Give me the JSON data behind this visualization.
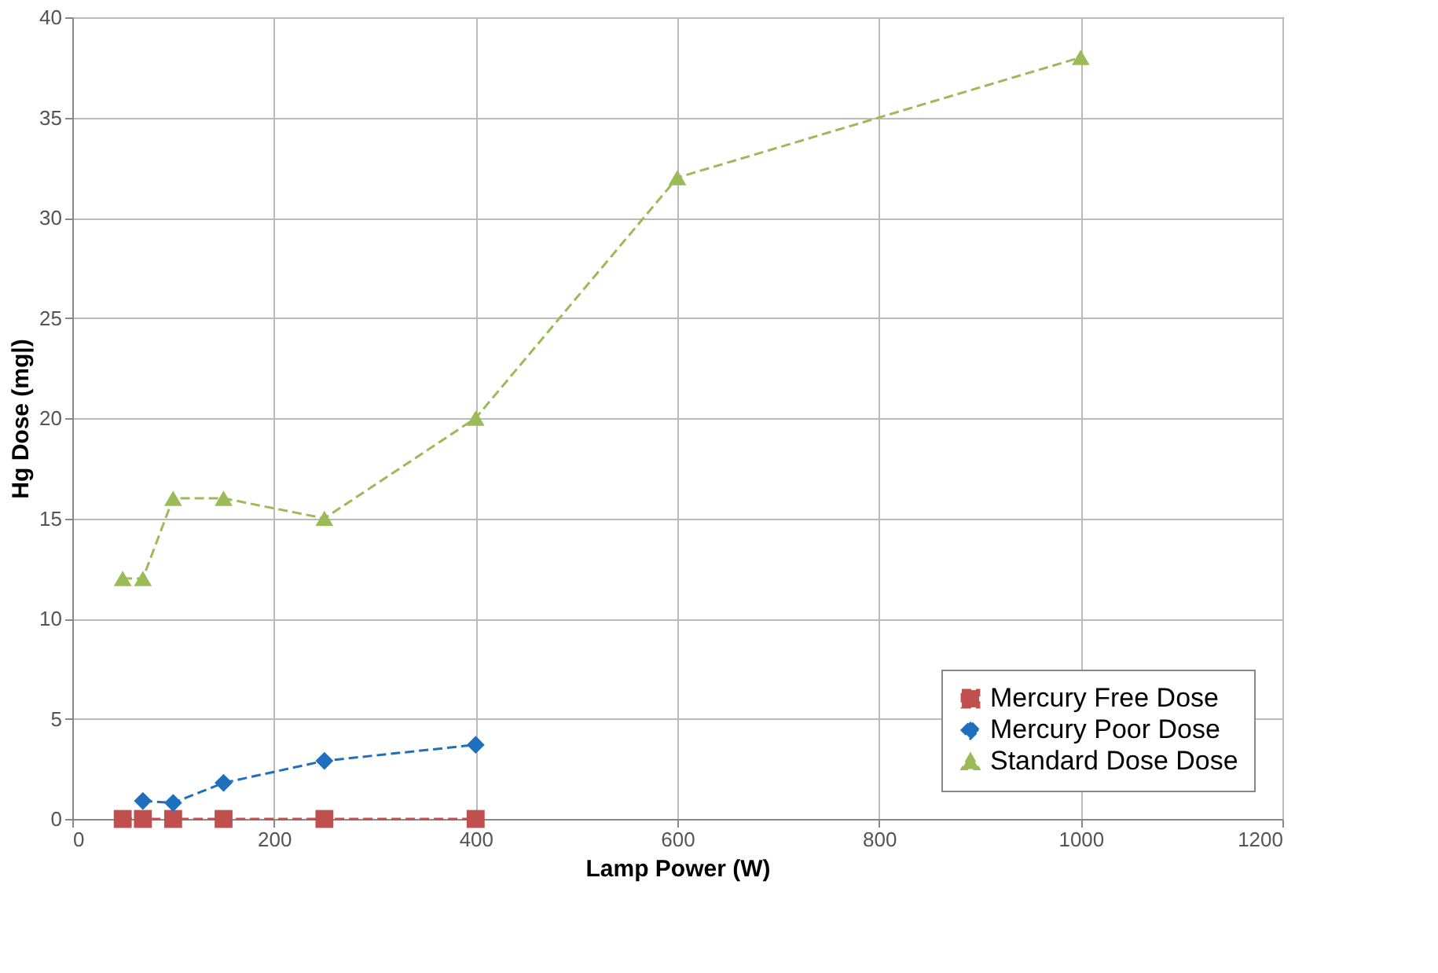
{
  "chart_data": {
    "type": "line",
    "xlabel": "Lamp Power (W)",
    "ylabel": "Hg Dose (mg|)",
    "xlim": [
      0,
      1200
    ],
    "xticks": [
      0,
      200,
      400,
      600,
      800,
      1000,
      1200
    ],
    "ylim": [
      0,
      40
    ],
    "yticks": [
      0,
      5,
      10,
      15,
      20,
      25,
      30,
      35,
      40
    ],
    "grid": true,
    "legend": "bottom right",
    "line_style": "dashed",
    "series": [
      {
        "name": "Mercury Free Dose",
        "color": "#c0504d",
        "marker": "square",
        "x": [
          50,
          70,
          100,
          150,
          250,
          400
        ],
        "values": [
          0,
          0,
          0,
          0,
          0,
          0
        ]
      },
      {
        "name": "Mercury Poor Dose",
        "color": "#1f6fbf",
        "marker": "diamond",
        "x": [
          70,
          100,
          150,
          250,
          400
        ],
        "values": [
          0.9,
          0.8,
          1.8,
          2.9,
          3.7
        ]
      },
      {
        "name": "Standard Dose Dose",
        "color": "#9bbb59",
        "marker": "triangle",
        "x": [
          50,
          70,
          100,
          150,
          250,
          400,
          600,
          1000
        ],
        "values": [
          12,
          12,
          16,
          16,
          15,
          20,
          32,
          38
        ]
      }
    ]
  }
}
